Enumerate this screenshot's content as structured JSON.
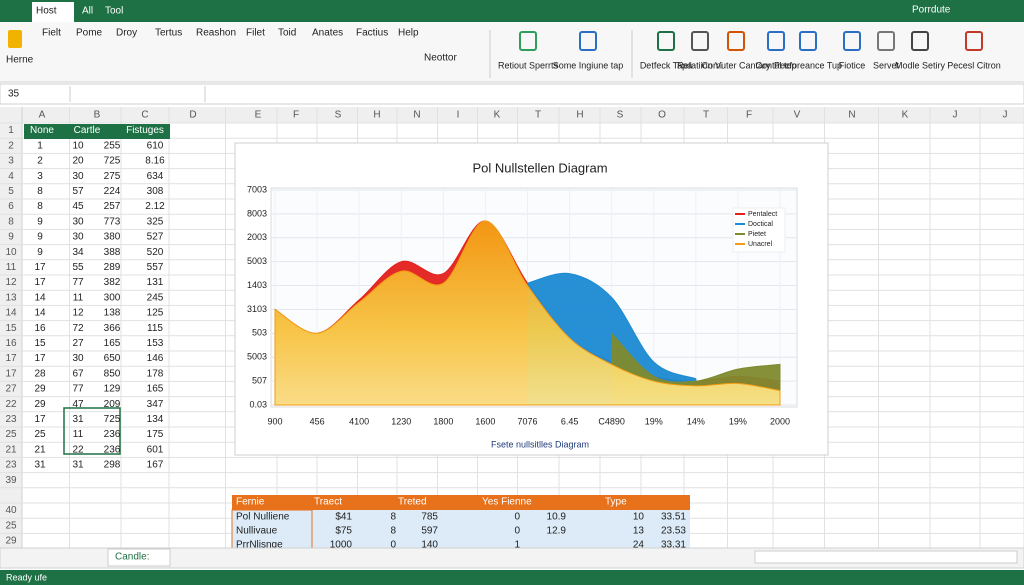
{
  "title_bar": {
    "tabs": [
      "Host",
      "All",
      "Tool"
    ],
    "right": "Porrdute"
  },
  "menu": [
    "Fielt",
    "Pome",
    "Droy",
    "Tertus",
    "Reashon",
    "Filet",
    "Toid",
    "Anates",
    "Factius",
    "Help"
  ],
  "ribbon": {
    "home": "Herne",
    "font": "Neottor",
    "items": [
      "Retiout Sperrts",
      "Some Ingiune tap",
      "Detfeck Tapa",
      "Refatiion Vi",
      "Cornuter Cantary",
      "Contal tep",
      "Pecforeance Tup",
      "Fiotice",
      "Servet",
      "Modle Setiry",
      "Pecesl Citron"
    ]
  },
  "formula_bar": {
    "cell": "35"
  },
  "columns": [
    "A",
    "B",
    "C",
    "D",
    "E",
    "F",
    "S",
    "H",
    "N",
    "I",
    "K",
    "T",
    "H",
    "S",
    "O",
    "T",
    "F",
    "V",
    "N",
    "K",
    "J",
    "J"
  ],
  "rows": [
    "1",
    "2",
    "3",
    "4",
    "5",
    "6",
    "8",
    "9",
    "10",
    "11",
    "12",
    "13",
    "14",
    "15",
    "16",
    "17",
    "17",
    "27",
    "22",
    "23",
    "25",
    "21",
    "23",
    "39",
    "",
    "40",
    "25",
    "29"
  ],
  "sheet_table": {
    "header": [
      "None",
      "Cartle",
      "Fistuges"
    ],
    "rows": [
      [
        "1",
        "10",
        "255",
        "610"
      ],
      [
        "2",
        "20",
        "725",
        "8.16"
      ],
      [
        "3",
        "30",
        "275",
        "634"
      ],
      [
        "8",
        "57",
        "224",
        "308"
      ],
      [
        "8",
        "45",
        "257",
        "2.12"
      ],
      [
        "9",
        "30",
        "773",
        "325"
      ],
      [
        "9",
        "30",
        "380",
        "527"
      ],
      [
        "9",
        "34",
        "388",
        "520"
      ],
      [
        "17",
        "55",
        "289",
        "557"
      ],
      [
        "17",
        "77",
        "382",
        "131"
      ],
      [
        "14",
        "11",
        "300",
        "245"
      ],
      [
        "14",
        "12",
        "138",
        "125"
      ],
      [
        "16",
        "72",
        "366",
        "115"
      ],
      [
        "15",
        "27",
        "165",
        "153"
      ],
      [
        "17",
        "30",
        "650",
        "146"
      ],
      [
        "28",
        "67",
        "850",
        "178"
      ],
      [
        "29",
        "77",
        "129",
        "165"
      ],
      [
        "29",
        "47",
        "209",
        "347"
      ],
      [
        "17",
        "31",
        "725",
        "134"
      ],
      [
        "25",
        "11",
        "236",
        "175"
      ],
      [
        "21",
        "22",
        "236",
        "601"
      ],
      [
        "31",
        "31",
        "298",
        "167"
      ]
    ]
  },
  "chart_data": {
    "type": "area",
    "title": "Pol Nullstellen Diagram",
    "subtitle": "Fsete nullsitlles Diagram",
    "categories": [
      "900",
      "456",
      "4100",
      "1230",
      "1800",
      "1600",
      "7076",
      "6.45",
      "C4890",
      "19%",
      "14%",
      "19%",
      "2000"
    ],
    "series": [
      {
        "name": "Pentalect",
        "color": "#e3201b",
        "values": [
          4.0,
          3.0,
          4.4,
          6.0,
          5.5,
          7.7,
          5.1,
          2.8,
          1.8,
          1.2,
          1.0,
          1.2,
          1.0
        ]
      },
      {
        "name": "Doctical",
        "color": "#1b8ad3",
        "values": [
          null,
          null,
          null,
          null,
          null,
          null,
          5.1,
          5.5,
          4.5,
          1.8,
          1.1,
          null,
          null
        ]
      },
      {
        "name": "Pietet",
        "color": "#7e8a2e",
        "values": [
          null,
          null,
          null,
          null,
          null,
          null,
          null,
          null,
          3.0,
          1.2,
          1.0,
          1.5,
          1.7
        ]
      },
      {
        "name": "Unacrel",
        "color": "#f39c12",
        "values": [
          4.0,
          3.0,
          4.3,
          5.6,
          5.1,
          7.7,
          5.0,
          2.8,
          1.7,
          1.0,
          0.8,
          0.9,
          0.6
        ]
      }
    ],
    "ylim": [
      0,
      9
    ],
    "yticks": [
      {
        "value": 0,
        "label": "0.03"
      },
      {
        "value": 1,
        "label": "507"
      },
      {
        "value": 2,
        "label": "5003"
      },
      {
        "value": 3,
        "label": "503"
      },
      {
        "value": 4,
        "label": "3103"
      },
      {
        "value": 5,
        "label": "1403"
      },
      {
        "value": 6,
        "label": "5003"
      },
      {
        "value": 7,
        "label": "2003"
      },
      {
        "value": 8,
        "label": "8003"
      },
      {
        "value": 9,
        "label": "7003"
      }
    ],
    "grid": true,
    "legend": "top-right"
  },
  "bottom_table": {
    "header": [
      "Fernie",
      "Traect",
      "Treted",
      "Yes Fienne",
      "Type"
    ],
    "rows": [
      [
        "Pol Nulliene",
        "$41",
        "8",
        "785",
        "0",
        "10.9",
        "10",
        "33.51"
      ],
      [
        "Nullivaue",
        "$75",
        "8",
        "597",
        "0",
        "12.9",
        "13",
        "23.53"
      ],
      [
        "PrrNlisnge",
        "1000",
        "0",
        "140",
        "1",
        "",
        "24",
        "33.31"
      ]
    ]
  },
  "sheet_tabs": [
    "Candle:"
  ],
  "status": "Ready ufe"
}
